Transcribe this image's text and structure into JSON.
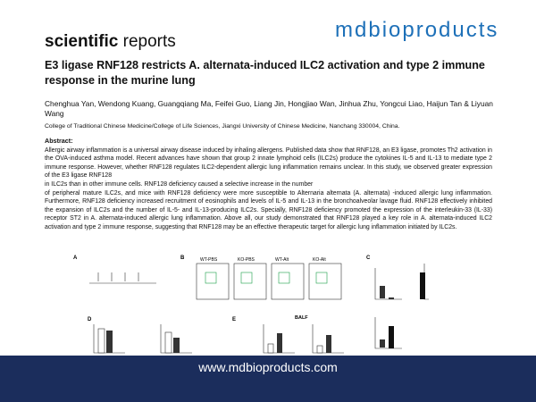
{
  "logo": {
    "text": "mdbioproducts"
  },
  "journal": {
    "bold": "scientific",
    "rest": "reports"
  },
  "title": "E3 ligase RNF128 restricts A. alternata-induced ILC2 activation and type 2 immune response in the murine lung",
  "authors": "Chenghua Yan, Wendong Kuang, Guangqiang Ma, Feifei Guo, Liang Jin, Hongjiao Wan, Jinhua Zhu, Yongcui Liao, Haijun Tan & Liyuan Wang",
  "affiliation": "College of Traditional Chinese Medicine/College of Life Sciences, Jiangxi University of Chinese Medicine, Nanchang 330004, China.",
  "abstract": {
    "heading": "Abstract:",
    "paragraphs": [
      "Allergic airway inflammation is a universal airway disease induced by inhaling allergens. Published data show that RNF128, an E3 ligase, promotes Th2 activation in the OVA-induced asthma model. Recent advances have shown that group 2 innate lymphoid cells (ILC2s) produce the cytokines IL-5 and IL-13 to mediate type 2 immune response. However, whether RNF128 regulates ILC2-dependent allergic lung inflammation remains unclear. In this study, we observed greater expression of the E3 ligase RNF128",
      "in ILC2s than in other immune cells. RNF128 deficiency caused a selective increase in the number",
      "of peripheral mature ILC2s, and mice with RNF128 deficiency were more susceptible to Alternaria alternata (A. alternata) -induced allergic lung inflammation. Furthermore, RNF128 deficiency increased recruitment of eosinophils and levels of IL-5 and IL-13 in the bronchoalveolar lavage fluid. RNF128 effectively inhibited the expansion of ILC2s and the number of IL-5- and IL-13-producing ILC2s. Specially, RNF128 deficiency promoted the expression of the interleukin-33 (IL-33) receptor ST2 in A. alternata-induced allergic lung inflammation. Above all, our study demonstrated that RNF128 played a key role in A. alternata-induced ILC2 activation and type 2 immune response, suggesting that RNF128 may be an effective therapeutic target for allergic lung inflammation initiated by ILC2s."
    ]
  },
  "figure": {
    "panels": [
      "A",
      "B",
      "C",
      "D",
      "E"
    ],
    "groups": [
      "WT-PBS",
      "KO-PBS",
      "WT-Alt",
      "KO-Alt"
    ],
    "fluid": "BALF"
  },
  "footer": "www.mdbioproducts.com"
}
